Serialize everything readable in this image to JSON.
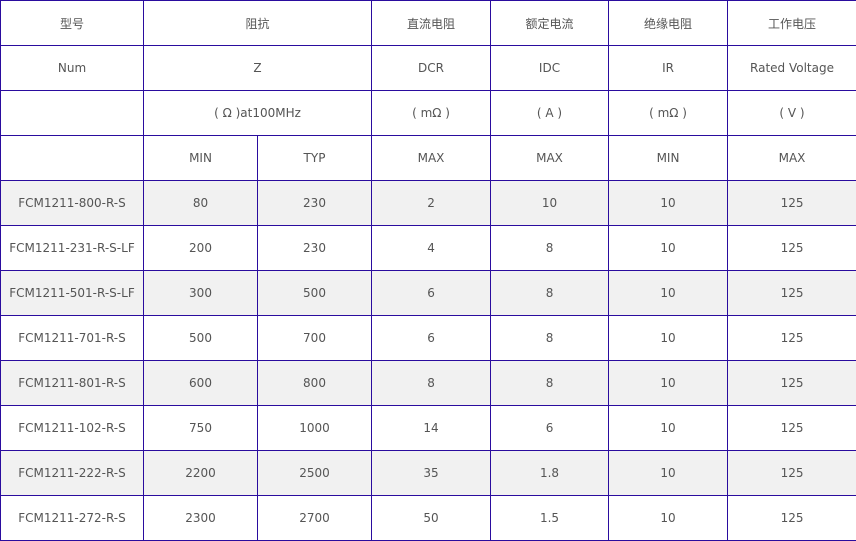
{
  "header": {
    "row1": [
      "型号",
      "阻抗",
      "直流电阻",
      "额定电流",
      "绝缘电阻",
      "工作电压"
    ],
    "row2": [
      "Num",
      "Z",
      "DCR",
      "IDC",
      "IR",
      "Rated Voltage"
    ],
    "row3": [
      "",
      "( Ω )at100MHz",
      "( mΩ )",
      "( A )",
      "( mΩ )",
      "( V )"
    ],
    "row4": [
      "",
      "MIN",
      "TYP",
      "MAX",
      "MAX",
      "MIN",
      "MAX"
    ]
  },
  "rows": [
    [
      "FCM1211-800-R-S",
      "80",
      "230",
      "2",
      "10",
      "10",
      "125"
    ],
    [
      "FCM1211-231-R-S-LF",
      "200",
      "230",
      "4",
      "8",
      "10",
      "125"
    ],
    [
      "FCM1211-501-R-S-LF",
      "300",
      "500",
      "6",
      "8",
      "10",
      "125"
    ],
    [
      "FCM1211-701-R-S",
      "500",
      "700",
      "6",
      "8",
      "10",
      "125"
    ],
    [
      "FCM1211-801-R-S",
      "600",
      "800",
      "8",
      "8",
      "10",
      "125"
    ],
    [
      "FCM1211-102-R-S",
      "750",
      "1000",
      "14",
      "6",
      "10",
      "125"
    ],
    [
      "FCM1211-222-R-S",
      "2200",
      "2500",
      "35",
      "1.8",
      "10",
      "125"
    ],
    [
      "FCM1211-272-R-S",
      "2300",
      "2700",
      "50",
      "1.5",
      "10",
      "125"
    ]
  ]
}
